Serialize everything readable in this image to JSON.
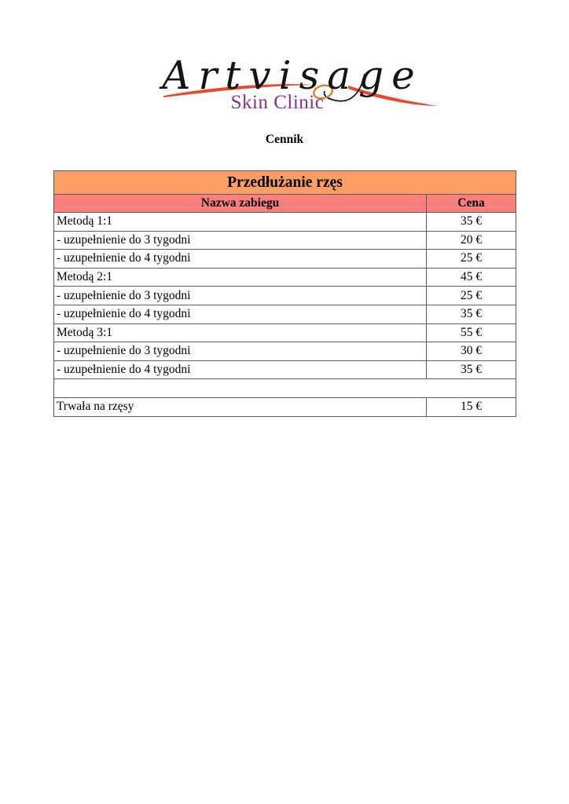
{
  "logo": {
    "brand": "Artvisage",
    "subtitle": "Skin Clinic"
  },
  "page": {
    "heading": "Cennik"
  },
  "colors": {
    "title_bg": "#fa9e65",
    "header_bg": "#fa7f7f",
    "swoosh": "#e8492b",
    "loop": "#dd7e2e",
    "subtitle_color": "#8c2e8c",
    "brand_color": "#141414",
    "border": "#5b5b5b"
  },
  "table": {
    "title": "Przedłużanie rzęs",
    "columns": [
      "Nazwa zabiegu",
      "Cena"
    ],
    "rows": [
      {
        "name": "Metodą 1:1",
        "price": "35 €"
      },
      {
        "name": "- uzupełnienie do 3 tygodni",
        "price": "20 €"
      },
      {
        "name": "- uzupełnienie do 4 tygodni",
        "price": "25 €"
      },
      {
        "name": "Metodą 2:1",
        "price": "45 €"
      },
      {
        "name": "- uzupełnienie do 3 tygodni",
        "price": "25 €"
      },
      {
        "name": "- uzupełnienie do 4 tygodni",
        "price": "35 €"
      },
      {
        "name": "Metodą 3:1",
        "price": "55 €"
      },
      {
        "name": "- uzupełnienie do 3 tygodni",
        "price": "30 €"
      },
      {
        "name": "- uzupełnienie do 4 tygodni",
        "price": "35 €"
      },
      {
        "name": "",
        "price": "",
        "empty": true
      },
      {
        "name": "Trwała na rzęsy",
        "price": "15 €"
      }
    ]
  }
}
